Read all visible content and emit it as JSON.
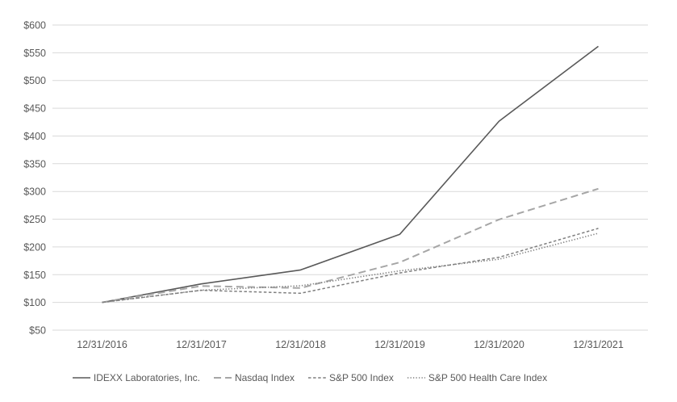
{
  "chart_data": {
    "type": "line",
    "title": "",
    "x_axis": {
      "categories": [
        "12/31/2016",
        "12/31/2017",
        "12/31/2018",
        "12/31/2019",
        "12/31/2020",
        "12/31/2021"
      ]
    },
    "y_axis": {
      "min": 50,
      "max": 600,
      "step": 50,
      "tick_labels": [
        "$600",
        "$550",
        "$500",
        "$450",
        "$400",
        "$350",
        "$300",
        "$250",
        "$200",
        "$150",
        "$100",
        "$50"
      ]
    },
    "grid": true,
    "legend_position": "bottom",
    "series": [
      {
        "name": "IDEXX Laboratories, Inc.",
        "style": "solid",
        "color": "#595959",
        "values": [
          100.0,
          133.38,
          158.52,
          222.87,
          426.67,
          561.55
        ]
      },
      {
        "name": "Nasdaq Index",
        "style": "long-dash",
        "color": "#a6a6a6",
        "values": [
          100.0,
          129.64,
          125.96,
          172.17,
          249.51,
          304.85
        ]
      },
      {
        "name": "S&P 500 Index",
        "style": "dash",
        "color": "#7f7f7f",
        "values": [
          100.0,
          121.83,
          116.49,
          153.17,
          181.35,
          233.41
        ]
      },
      {
        "name": "S&P 500 Health Care Index",
        "style": "dot",
        "color": "#7f7f7f",
        "values": [
          100.0,
          122.08,
          129.98,
          156.91,
          177.92,
          224.61
        ]
      }
    ],
    "colors": {
      "gridline": "#d9d9d9",
      "text": "#595959",
      "background": "#ffffff"
    }
  }
}
